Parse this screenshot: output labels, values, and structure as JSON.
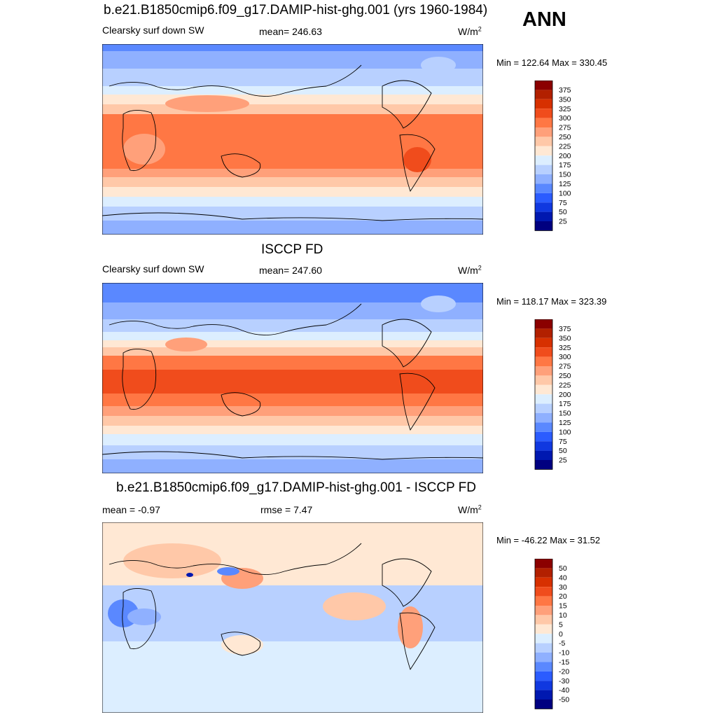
{
  "page": {
    "season": "ANN",
    "units_base": "W/m",
    "units_exp": "2"
  },
  "panels": [
    {
      "title": "b.e21.B1850cmip6.f09_g17.DAMIP-hist-ghg.001 (yrs 1960-1984)",
      "left_label": "Clearsky surf down SW",
      "center_label": "mean= 246.63",
      "minmax": "Min = 122.64 Max = 330.45",
      "colorbar_ticks": [
        "375",
        "350",
        "325",
        "300",
        "275",
        "250",
        "225",
        "200",
        "175",
        "150",
        "125",
        "100",
        "75",
        "50",
        "25"
      ]
    },
    {
      "title": "ISCCP FD",
      "left_label": "Clearsky surf down SW",
      "center_label": "mean= 247.60",
      "minmax": "Min = 118.17 Max = 323.39",
      "colorbar_ticks": [
        "375",
        "350",
        "325",
        "300",
        "275",
        "250",
        "225",
        "200",
        "175",
        "150",
        "125",
        "100",
        "75",
        "50",
        "25"
      ]
    },
    {
      "title": "b.e21.B1850cmip6.f09_g17.DAMIP-hist-ghg.001 - ISCCP FD",
      "left_label": "mean =  -0.97",
      "center_label": "rmse =   7.47",
      "minmax": "Min = -46.22 Max =  31.52",
      "colorbar_ticks": [
        "50",
        "40",
        "30",
        "20",
        "15",
        "10",
        "5",
        "0",
        "-5",
        "-10",
        "-15",
        "-20",
        "-30",
        "-40",
        "-50"
      ]
    }
  ],
  "colors": {
    "abs_scale": [
      "#8b0000",
      "#b22000",
      "#d73000",
      "#f04c1c",
      "#ff7744",
      "#ffa07a",
      "#ffc8a8",
      "#ffe8d4",
      "#dceeff",
      "#b8d0ff",
      "#8fb0ff",
      "#5a88ff",
      "#2b5cff",
      "#1038e0",
      "#0018b0",
      "#000080"
    ],
    "diff_scale": [
      "#8b0000",
      "#b22000",
      "#d73000",
      "#f04c1c",
      "#ff7744",
      "#ffa07a",
      "#ffc8a8",
      "#ffe8d4",
      "#dceeff",
      "#b8d0ff",
      "#8fb0ff",
      "#5a88ff",
      "#2b5cff",
      "#1038e0",
      "#0018b0",
      "#000080"
    ]
  }
}
